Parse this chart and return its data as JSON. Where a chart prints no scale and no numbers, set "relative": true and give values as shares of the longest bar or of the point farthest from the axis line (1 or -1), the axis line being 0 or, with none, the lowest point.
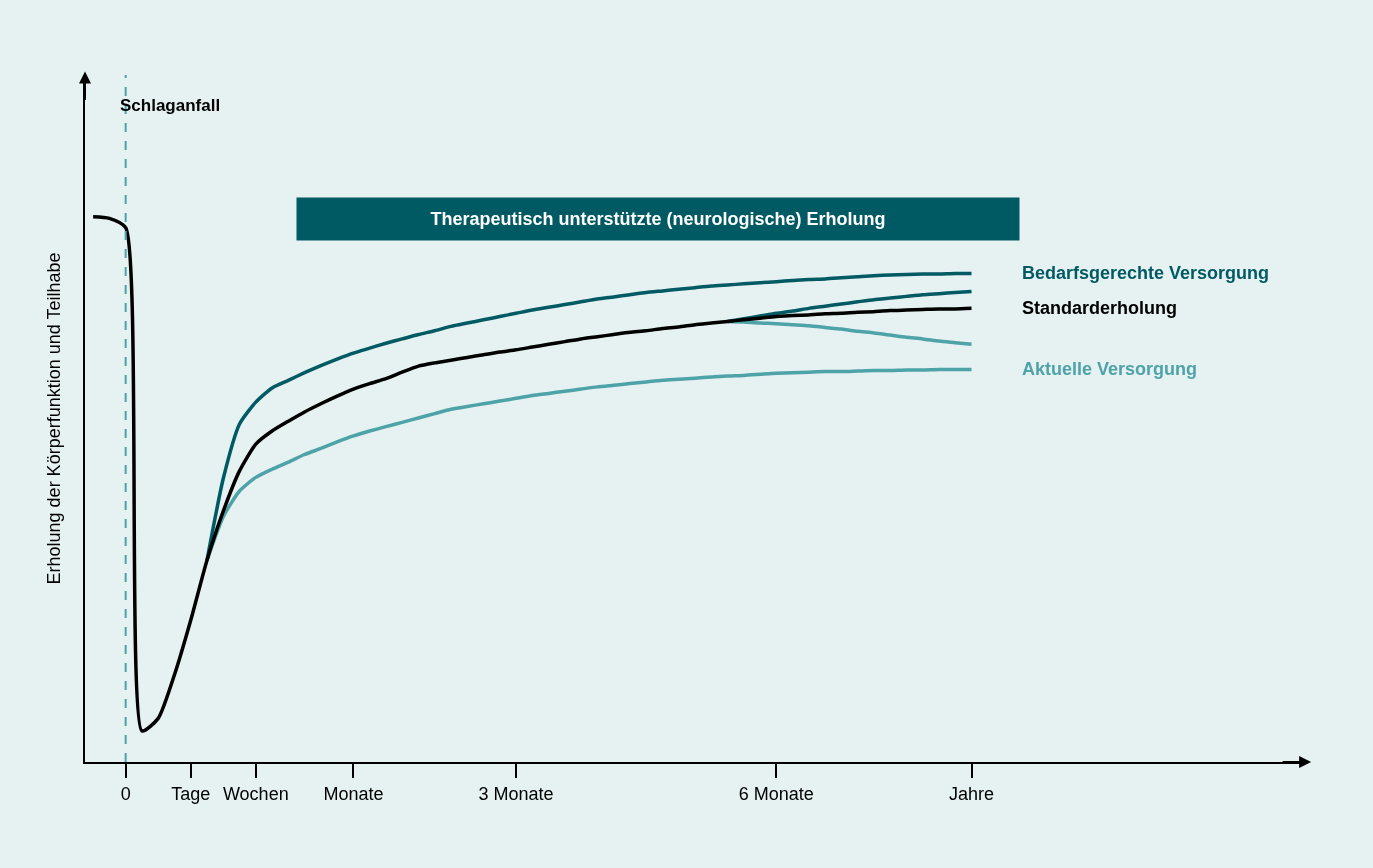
{
  "chart_data": {
    "type": "line",
    "relative": true,
    "ylabel": "Erholung der Körperfunktion und Teilhabe",
    "categories": [
      null,
      null,
      "0",
      null,
      null,
      null,
      "Tage",
      null,
      null,
      null,
      "Wochen",
      null,
      null,
      null,
      null,
      null,
      "Monate",
      null,
      null,
      null,
      null,
      null,
      null,
      null,
      null,
      null,
      "3 Monate",
      null,
      null,
      null,
      null,
      null,
      null,
      null,
      null,
      null,
      null,
      null,
      null,
      null,
      null,
      null,
      "6 Monate",
      null,
      null,
      null,
      null,
      null,
      null,
      null,
      null,
      null,
      null,
      null,
      "Jahre",
      null,
      null,
      null,
      null,
      null,
      null,
      null,
      null,
      null,
      null,
      null,
      null,
      null,
      null,
      null,
      null,
      null,
      null,
      null,
      null
    ],
    "grid": false,
    "legend": false,
    "line_style": "solid",
    "marker": "none",
    "series": [
      {
        "name": "Aktuelle Versorgung",
        "color": "#4da3a8",
        "values": [
          null,
          null,
          null,
          null,
          null,
          null,
          null,
          0.37,
          0.45,
          0.497,
          0.522,
          0.537,
          0.55,
          0.564,
          0.575,
          0.587,
          0.598,
          0.607,
          0.615,
          0.623,
          0.631,
          0.639,
          0.647,
          0.652,
          0.657,
          0.662,
          0.667,
          0.672,
          0.676,
          0.68,
          0.684,
          0.688,
          0.691,
          0.694,
          0.697,
          0.7,
          0.702,
          0.704,
          0.706,
          0.708,
          0.709,
          0.711,
          0.713,
          0.714,
          0.715,
          0.716,
          0.716,
          0.717,
          0.718,
          0.718,
          0.719,
          0.719,
          0.72,
          0.72,
          0.72,
          null,
          null,
          null,
          null,
          null,
          null,
          null,
          null,
          null,
          null,
          null,
          null,
          null,
          null,
          null,
          null,
          null,
          null,
          null,
          null
        ]
      },
      {
        "color": "#4da3a8",
        "values": [
          null,
          null,
          null,
          null,
          null,
          null,
          null,
          null,
          null,
          null,
          null,
          null,
          null,
          null,
          null,
          null,
          null,
          null,
          null,
          null,
          null,
          null,
          null,
          null,
          null,
          null,
          null,
          null,
          null,
          null,
          null,
          null,
          null,
          null,
          null,
          null,
          null,
          null,
          null,
          0.808,
          0.807,
          0.805,
          0.804,
          0.802,
          0.8,
          0.797,
          0.794,
          0.79,
          0.787,
          0.783,
          0.779,
          0.776,
          0.772,
          0.769,
          0.766,
          null,
          null,
          null,
          null,
          null,
          null,
          null,
          null,
          null,
          null,
          null,
          null,
          null,
          null,
          null,
          null,
          null,
          null,
          null,
          null
        ]
      },
      {
        "color": "#005a63",
        "values": [
          null,
          null,
          null,
          null,
          null,
          null,
          null,
          null,
          null,
          null,
          null,
          null,
          null,
          null,
          null,
          null,
          null,
          null,
          null,
          null,
          null,
          null,
          null,
          null,
          null,
          null,
          null,
          null,
          null,
          null,
          null,
          null,
          null,
          null,
          null,
          null,
          null,
          null,
          null,
          0.808,
          0.813,
          0.818,
          0.823,
          0.827,
          0.832,
          0.836,
          0.84,
          0.844,
          0.848,
          0.851,
          0.854,
          0.857,
          0.859,
          0.861,
          0.863,
          null,
          null,
          null,
          null,
          null,
          null,
          null,
          null,
          null,
          null,
          null,
          null,
          null,
          null,
          null,
          null,
          null,
          null,
          null,
          null
        ]
      },
      {
        "name": "Bedarfsgerechte Versorgung",
        "color": "#005a63",
        "values": [
          null,
          null,
          null,
          null,
          null,
          null,
          null,
          0.37,
          0.52,
          0.62,
          0.66,
          0.686,
          0.7,
          0.714,
          0.727,
          0.739,
          0.75,
          0.759,
          0.768,
          0.776,
          0.784,
          0.791,
          0.799,
          0.805,
          0.811,
          0.817,
          0.823,
          0.829,
          0.834,
          0.839,
          0.844,
          0.849,
          0.853,
          0.857,
          0.861,
          0.864,
          0.867,
          0.87,
          0.873,
          0.875,
          0.877,
          0.879,
          0.881,
          0.883,
          0.885,
          0.886,
          0.888,
          0.89,
          0.892,
          0.893,
          0.894,
          0.895,
          0.895,
          0.896,
          0.896,
          null,
          null,
          null,
          null,
          null,
          null,
          null,
          null,
          null,
          null,
          null,
          null,
          null,
          null,
          null,
          null,
          null,
          null,
          null,
          null
        ]
      },
      {
        "name": "Standarderholung",
        "color": "#000000",
        "values": [
          1.0,
          0.997,
          0.98,
          0.057,
          0.08,
          0.16,
          0.26,
          0.37,
          0.46,
          0.534,
          0.583,
          0.607,
          0.625,
          0.642,
          0.657,
          0.671,
          0.684,
          0.694,
          0.703,
          0.715,
          0.726,
          0.732,
          0.737,
          0.742,
          0.747,
          0.752,
          0.756,
          0.761,
          0.766,
          0.771,
          0.776,
          0.78,
          0.784,
          0.788,
          0.791,
          0.795,
          0.798,
          0.802,
          0.805,
          0.808,
          0.811,
          0.814,
          0.817,
          0.819,
          0.82,
          0.822,
          0.823,
          0.825,
          0.826,
          0.828,
          0.829,
          0.83,
          0.831,
          0.831,
          0.832,
          null,
          null,
          null,
          null,
          null,
          null,
          null,
          null,
          null,
          null,
          null,
          null,
          null,
          null,
          null,
          null,
          null,
          null,
          null,
          null
        ]
      }
    ],
    "ref_lines": [
      {
        "axis": "x",
        "value": "0",
        "label": "Schlaganfall",
        "color": "#4da3a8",
        "line_style": "dashed"
      }
    ],
    "annotations": [
      "Therapeutisch unterstützte (neurologische) Erholung"
    ]
  }
}
